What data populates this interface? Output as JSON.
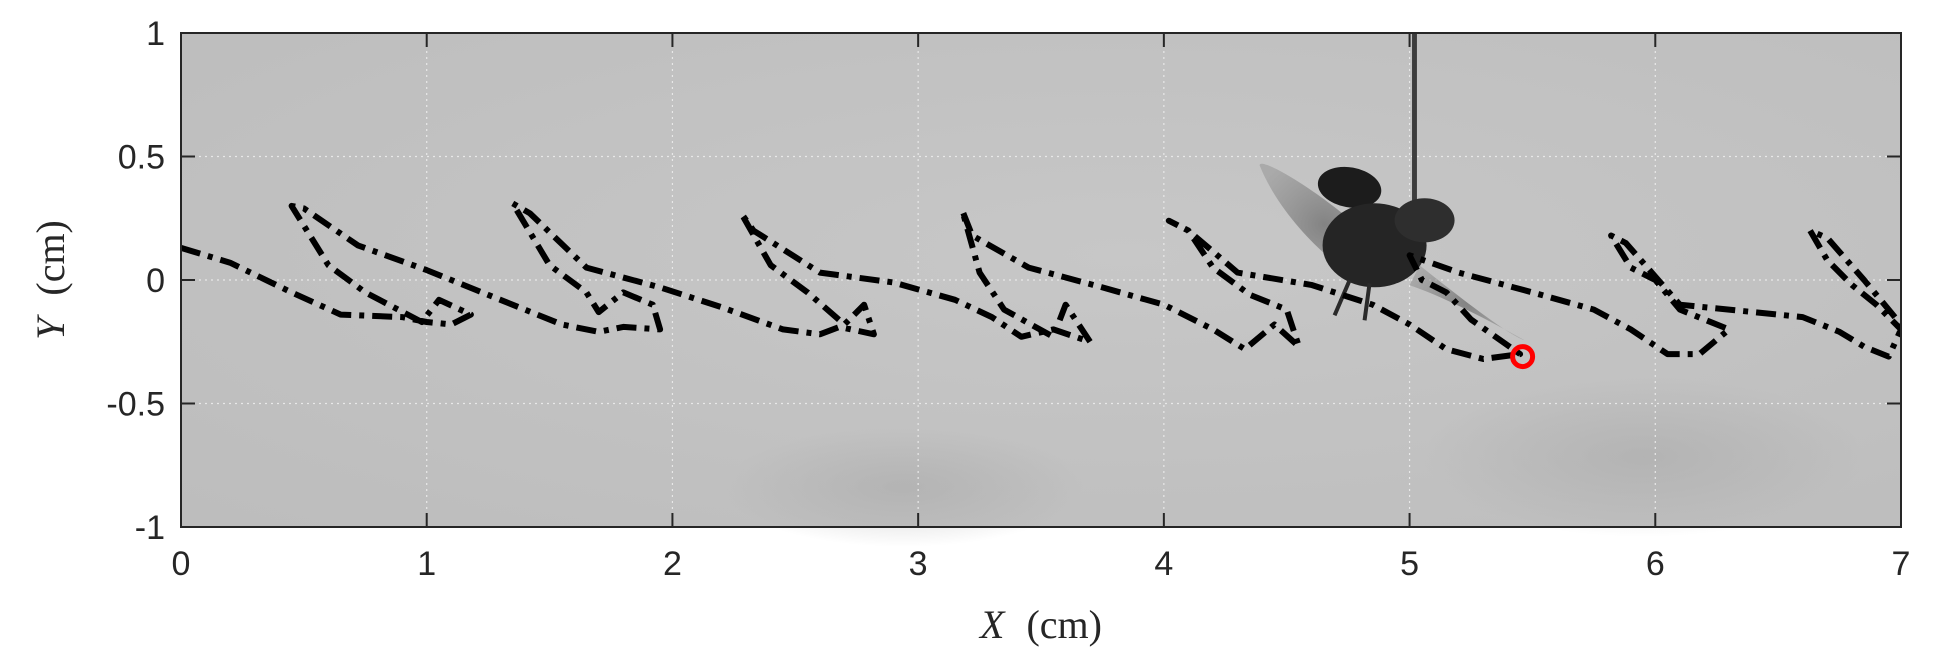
{
  "chart_data": {
    "type": "line",
    "xlabel_var": "X",
    "xlabel_unit": "(cm)",
    "ylabel_var": "Y",
    "ylabel_unit": "(cm)",
    "xlim": [
      0,
      7
    ],
    "ylim": [
      -1,
      1
    ],
    "xticks": [
      0,
      1,
      2,
      3,
      4,
      5,
      6,
      7
    ],
    "yticks": [
      -1,
      -0.5,
      0,
      0.5,
      1
    ],
    "ytick_labels": [
      "-1",
      "-0.5",
      "0",
      "0.5",
      "1"
    ],
    "grid": true,
    "background": "grayscale high-speed video frame of a flying beetle tethered from above",
    "series": [
      {
        "style": "dash-dot",
        "color": "#000000",
        "x": [
          0,
          0.2,
          0.45,
          0.65,
          0.9,
          1.0,
          1.1,
          1.18,
          1.05,
          0.98,
          0.75,
          0.6,
          0.45,
          0.5,
          0.72,
          1.0,
          1.3,
          1.55,
          1.7,
          1.8,
          1.95,
          1.92,
          1.8,
          1.7,
          1.65,
          1.5,
          1.35,
          1.42,
          1.65,
          1.95,
          2.2,
          2.45,
          2.6,
          2.68,
          2.82,
          2.78,
          2.7,
          2.55,
          2.4,
          2.28,
          2.33,
          2.6,
          2.9,
          3.15,
          3.3,
          3.42,
          3.55,
          3.7,
          3.6,
          3.55,
          3.35,
          3.25,
          3.18,
          3.22,
          3.45,
          3.75,
          4.0,
          4.2,
          4.33,
          4.45,
          4.55,
          4.5,
          4.35,
          4.2,
          4.1,
          4.02,
          4.1,
          4.3,
          4.6,
          4.85,
          5.0,
          5.15,
          5.3,
          5.45,
          5.25,
          5.15,
          5.05,
          5.0,
          5.2,
          5.5,
          5.75,
          5.9,
          6.05,
          6.18,
          6.3,
          6.1,
          6.0,
          5.9,
          5.82,
          5.88,
          6.1,
          6.4,
          6.6,
          6.75,
          6.85,
          6.95,
          7.0,
          6.9,
          6.8,
          6.7,
          6.63,
          6.7,
          6.85,
          7.0
        ],
        "y": [
          0.13,
          0.07,
          -0.05,
          -0.14,
          -0.15,
          -0.17,
          -0.18,
          -0.14,
          -0.08,
          -0.17,
          -0.05,
          0.06,
          0.3,
          0.29,
          0.14,
          0.04,
          -0.08,
          -0.18,
          -0.21,
          -0.19,
          -0.2,
          -0.1,
          -0.05,
          -0.13,
          -0.05,
          0.06,
          0.31,
          0.27,
          0.05,
          -0.03,
          -0.11,
          -0.2,
          -0.22,
          -0.19,
          -0.22,
          -0.1,
          -0.18,
          -0.05,
          0.06,
          0.27,
          0.2,
          0.03,
          -0.01,
          -0.08,
          -0.15,
          -0.23,
          -0.2,
          -0.25,
          -0.1,
          -0.23,
          -0.12,
          0.03,
          0.28,
          0.18,
          0.05,
          -0.03,
          -0.1,
          -0.2,
          -0.28,
          -0.18,
          -0.27,
          -0.12,
          -0.06,
          0.05,
          0.2,
          0.24,
          0.2,
          0.03,
          -0.02,
          -0.1,
          -0.18,
          -0.28,
          -0.32,
          -0.3,
          -0.16,
          -0.05,
          0.0,
          0.1,
          0.03,
          -0.05,
          -0.12,
          -0.2,
          -0.3,
          -0.3,
          -0.2,
          -0.12,
          0.0,
          0.05,
          0.18,
          0.15,
          -0.1,
          -0.13,
          -0.15,
          -0.21,
          -0.27,
          -0.31,
          -0.2,
          -0.1,
          -0.02,
          0.08,
          0.2,
          0.17,
          0.0,
          -0.18
        ]
      }
    ],
    "marker": {
      "x": 5.46,
      "y": -0.31,
      "shape": "circle",
      "color": "#ff0000"
    }
  }
}
